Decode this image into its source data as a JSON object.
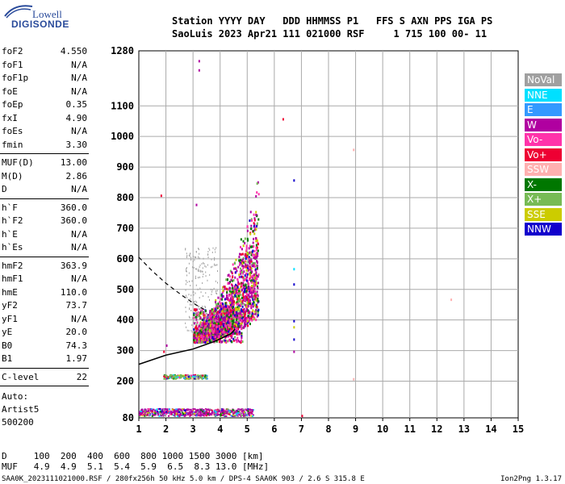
{
  "logo": {
    "line1": "Lowell",
    "line2": "DIGISONDE"
  },
  "header": {
    "line1": "Station YYYY DAY   DDD HHMMSS P1   FFS S AXN PPS IGA PS",
    "line2": "SaoLuis 2023 Apr21 111 021000 RSF     1 715 100 00- 11"
  },
  "params": {
    "group1": [
      {
        "name": "foF2",
        "value": "4.550"
      },
      {
        "name": "foF1",
        "value": "N/A"
      },
      {
        "name": "foF1p",
        "value": "N/A"
      },
      {
        "name": "foE",
        "value": "N/A"
      },
      {
        "name": "foEp",
        "value": "0.35"
      },
      {
        "name": "fxI",
        "value": "4.90"
      },
      {
        "name": "foEs",
        "value": "N/A"
      },
      {
        "name": "fmin",
        "value": "3.30"
      }
    ],
    "group2": [
      {
        "name": "MUF(D)",
        "value": "13.00"
      },
      {
        "name": "M(D)",
        "value": "2.86"
      },
      {
        "name": "D",
        "value": "N/A"
      }
    ],
    "group3": [
      {
        "name": "h`F",
        "value": "360.0"
      },
      {
        "name": "h`F2",
        "value": "360.0"
      },
      {
        "name": "h`E",
        "value": "N/A"
      },
      {
        "name": "h`Es",
        "value": "N/A"
      }
    ],
    "group4": [
      {
        "name": "hmF2",
        "value": "363.9"
      },
      {
        "name": "hmF1",
        "value": "N/A"
      },
      {
        "name": "hmE",
        "value": "110.0"
      },
      {
        "name": "yF2",
        "value": "73.7"
      },
      {
        "name": "yF1",
        "value": "N/A"
      },
      {
        "name": "yE",
        "value": "20.0"
      },
      {
        "name": "B0",
        "value": "74.3"
      },
      {
        "name": "B1",
        "value": "1.97"
      }
    ],
    "group5": [
      {
        "name": "C-level",
        "value": "22"
      }
    ]
  },
  "autoscaling": [
    "Auto:",
    "Artist5",
    "500200"
  ],
  "legend": [
    {
      "label": "NoVal",
      "color": "#a0a0a0"
    },
    {
      "label": "NNE",
      "color": "#00e0ff"
    },
    {
      "label": "E",
      "color": "#3399ff"
    },
    {
      "label": "W",
      "color": "#b000a0"
    },
    {
      "label": "Vo-",
      "color": "#ff33aa"
    },
    {
      "label": "Vo+",
      "color": "#ee0033"
    },
    {
      "label": "SSW",
      "color": "#ffb0b0"
    },
    {
      "label": "X-",
      "color": "#007700"
    },
    {
      "label": "X+",
      "color": "#77bb55"
    },
    {
      "label": "SSE",
      "color": "#cccc00"
    },
    {
      "label": "NNW",
      "color": "#1100cc"
    }
  ],
  "chart_data": {
    "type": "scatter",
    "x": {
      "min": 1,
      "max": 15,
      "ticks": [
        "1",
        "2",
        "3",
        "4",
        "5",
        "6",
        "7",
        "8",
        "9",
        "10",
        "11",
        "12",
        "13",
        "14",
        "15"
      ]
    },
    "y": {
      "min": 80,
      "max": 1280,
      "ticks": [
        "80",
        "200",
        "300",
        "400",
        "500",
        "600",
        "700",
        "800",
        "900",
        "1000",
        "1100",
        "1280"
      ]
    },
    "grid": true,
    "traces": {
      "o_trace_band": {
        "f_start": 3.0,
        "f_end": 5.4,
        "h_bottom": 330,
        "h_top": 880
      },
      "es_layer_1": {
        "f_range": [
          1.0,
          5.2
        ],
        "h": 100
      },
      "es_layer_2": {
        "f_range": [
          1.9,
          3.5
        ],
        "h": 215
      },
      "spur_freqs": [
        6.7,
        7.0,
        8.9
      ],
      "profile_solid": [
        [
          1.0,
          255
        ],
        [
          2.0,
          285
        ],
        [
          3.0,
          305
        ],
        [
          3.8,
          330
        ],
        [
          4.4,
          355
        ],
        [
          4.55,
          370
        ]
      ],
      "profile_dashed": [
        [
          1.0,
          605
        ],
        [
          1.5,
          560
        ],
        [
          2.0,
          520
        ],
        [
          2.6,
          480
        ],
        [
          3.1,
          450
        ],
        [
          3.5,
          430
        ]
      ]
    }
  },
  "footer": {
    "line1": "D     100  200  400  600  800 1000 1500 3000 [km]",
    "line2": "MUF   4.9  4.9  5.1  5.4  5.9  6.5  8.3 13.0 [MHz]",
    "source": "SAA0K_2023111021000.RSF / 280fx256h 50 kHz 5.0 km / DPS-4 SAA0K 903 / 2.6 S 315.8 E",
    "version": "Ion2Png 1.3.17"
  }
}
